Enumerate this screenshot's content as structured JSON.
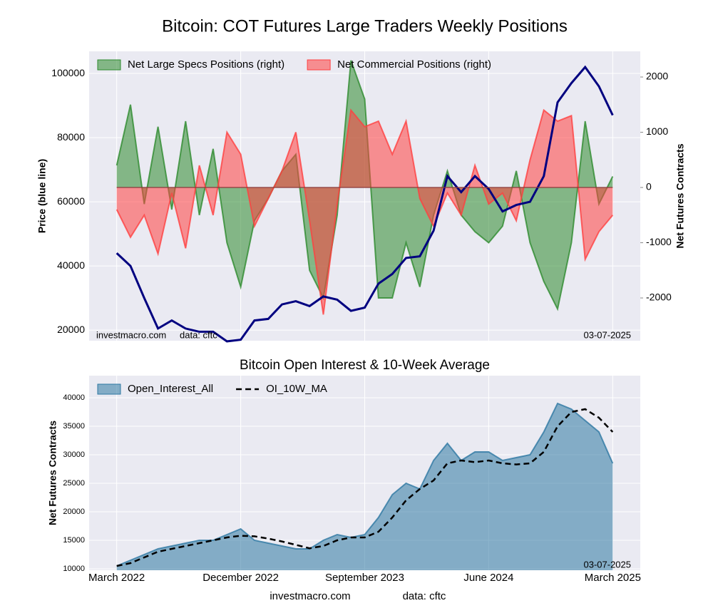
{
  "chart_data": [
    {
      "type": "line",
      "title": "Bitcoin: COT Futures Large Traders Weekly Positions",
      "ylabel": "Price (blue line)",
      "y2label": "Net Futures Contracts",
      "annotations": [
        "investmacro.com",
        "data: cftc",
        "03-07-2025"
      ],
      "x": [
        "2022-03",
        "2022-04",
        "2022-05",
        "2022-06",
        "2022-07",
        "2022-08",
        "2022-09",
        "2022-10",
        "2022-11",
        "2022-12",
        "2023-01",
        "2023-02",
        "2023-03",
        "2023-04",
        "2023-05",
        "2023-06",
        "2023-07",
        "2023-08",
        "2023-09",
        "2023-10",
        "2023-11",
        "2023-12",
        "2024-01",
        "2024-02",
        "2024-03",
        "2024-04",
        "2024-05",
        "2024-06",
        "2024-07",
        "2024-08",
        "2024-09",
        "2024-10",
        "2024-11",
        "2024-12",
        "2025-01",
        "2025-02",
        "2025-03"
      ],
      "xlim": [
        "2022-01",
        "2025-05"
      ],
      "xticks": [
        "2022-03",
        "2022-12",
        "2023-09",
        "2024-06",
        "2025-03"
      ],
      "ylim": [
        16700,
        106900
      ],
      "yticks": [
        20000,
        40000,
        60000,
        80000,
        100000
      ],
      "y2lim": [
        -2774,
        2465
      ],
      "y2ticks": [
        -2000,
        -1000,
        0,
        1000,
        2000
      ],
      "grid": true,
      "legend": "upper left",
      "series": [
        {
          "name": "Net Large Specs Positions (right)",
          "color": "#2e8b2e",
          "style": "area",
          "axis": "y2",
          "values": [
            400,
            1500,
            -300,
            1100,
            -400,
            1200,
            -500,
            700,
            -1000,
            -1800,
            -600,
            -200,
            300,
            600,
            -1500,
            -2000,
            -500,
            2300,
            1600,
            -2000,
            -2000,
            -1000,
            -1800,
            -500,
            300,
            -500,
            -800,
            -1000,
            -700,
            300,
            -1000,
            -1700,
            -2200,
            -1000,
            1200,
            -300,
            200
          ]
        },
        {
          "name": "Net Commercial Positions (right)",
          "color": "#ff4040",
          "style": "area",
          "axis": "y2",
          "values": [
            -400,
            -900,
            -500,
            -1200,
            -100,
            -1100,
            400,
            -500,
            1000,
            600,
            -700,
            -200,
            300,
            1000,
            -600,
            -2300,
            -300,
            1400,
            1100,
            1200,
            600,
            1200,
            -200,
            -700,
            -100,
            -500,
            400,
            -300,
            -100,
            -600,
            500,
            1400,
            1200,
            1300,
            -1300,
            -800,
            -500
          ]
        },
        {
          "color": "#000080",
          "style": "line",
          "values": [
            44000,
            40000,
            30000,
            20500,
            23000,
            20500,
            19500,
            19500,
            16500,
            17000,
            23000,
            23500,
            28000,
            29000,
            27500,
            30500,
            29500,
            26000,
            27000,
            34500,
            37500,
            42500,
            43000,
            51000,
            68000,
            63000,
            68000,
            64000,
            57000,
            59000,
            60000,
            68000,
            91000,
            97000,
            102000,
            96000,
            87000
          ]
        }
      ]
    },
    {
      "type": "line",
      "title": "Bitcoin Open Interest & 10-Week Average",
      "ylabel": "Net Futures Contracts",
      "annotations": [
        "03-07-2025"
      ],
      "x": [
        "2022-03",
        "2022-04",
        "2022-05",
        "2022-06",
        "2022-07",
        "2022-08",
        "2022-09",
        "2022-10",
        "2022-11",
        "2022-12",
        "2023-01",
        "2023-02",
        "2023-03",
        "2023-04",
        "2023-05",
        "2023-06",
        "2023-07",
        "2023-08",
        "2023-09",
        "2023-10",
        "2023-11",
        "2023-12",
        "2024-01",
        "2024-02",
        "2024-03",
        "2024-04",
        "2024-05",
        "2024-06",
        "2024-07",
        "2024-08",
        "2024-09",
        "2024-10",
        "2024-11",
        "2024-12",
        "2025-01",
        "2025-02",
        "2025-03"
      ],
      "xlim": [
        "2022-01",
        "2025-05"
      ],
      "xticks": [
        {
          "value": "2022-03",
          "label": "March 2022"
        },
        {
          "value": "2022-12",
          "label": "December 2022"
        },
        {
          "value": "2023-09",
          "label": "September 2023"
        },
        {
          "value": "2024-06",
          "label": "June 2024"
        },
        {
          "value": "2025-03",
          "label": "March 2025"
        }
      ],
      "ylim": [
        9750,
        43875
      ],
      "yticks": [
        10000,
        15000,
        20000,
        25000,
        30000,
        35000,
        40000
      ],
      "grid": true,
      "legend": "upper left",
      "series": [
        {
          "name": "Open_Interest_All",
          "color": "#2e78a3",
          "style": "area",
          "values": [
            10500,
            11500,
            12500,
            13500,
            14000,
            14500,
            15000,
            15000,
            16000,
            17000,
            15000,
            14500,
            14000,
            13500,
            13500,
            15000,
            16000,
            15500,
            16000,
            19000,
            23000,
            25000,
            24000,
            29000,
            32000,
            29000,
            30500,
            30500,
            29000,
            29500,
            30000,
            34000,
            39000,
            38000,
            36000,
            34000,
            28500
          ]
        },
        {
          "name": "OI_10W_MA",
          "color": "#000000",
          "style": "line",
          "dash": true,
          "values": [
            10500,
            11000,
            12000,
            13000,
            13500,
            14000,
            14500,
            15000,
            15500,
            15800,
            15700,
            15300,
            14800,
            14200,
            13600,
            14000,
            15000,
            15500,
            15500,
            16500,
            19000,
            22000,
            24000,
            25500,
            28500,
            29000,
            28700,
            29000,
            28500,
            28300,
            28500,
            30500,
            35000,
            37500,
            38000,
            36500,
            34000
          ]
        }
      ]
    }
  ],
  "footer": {
    "site": "investmacro.com",
    "source": "data: cftc"
  }
}
